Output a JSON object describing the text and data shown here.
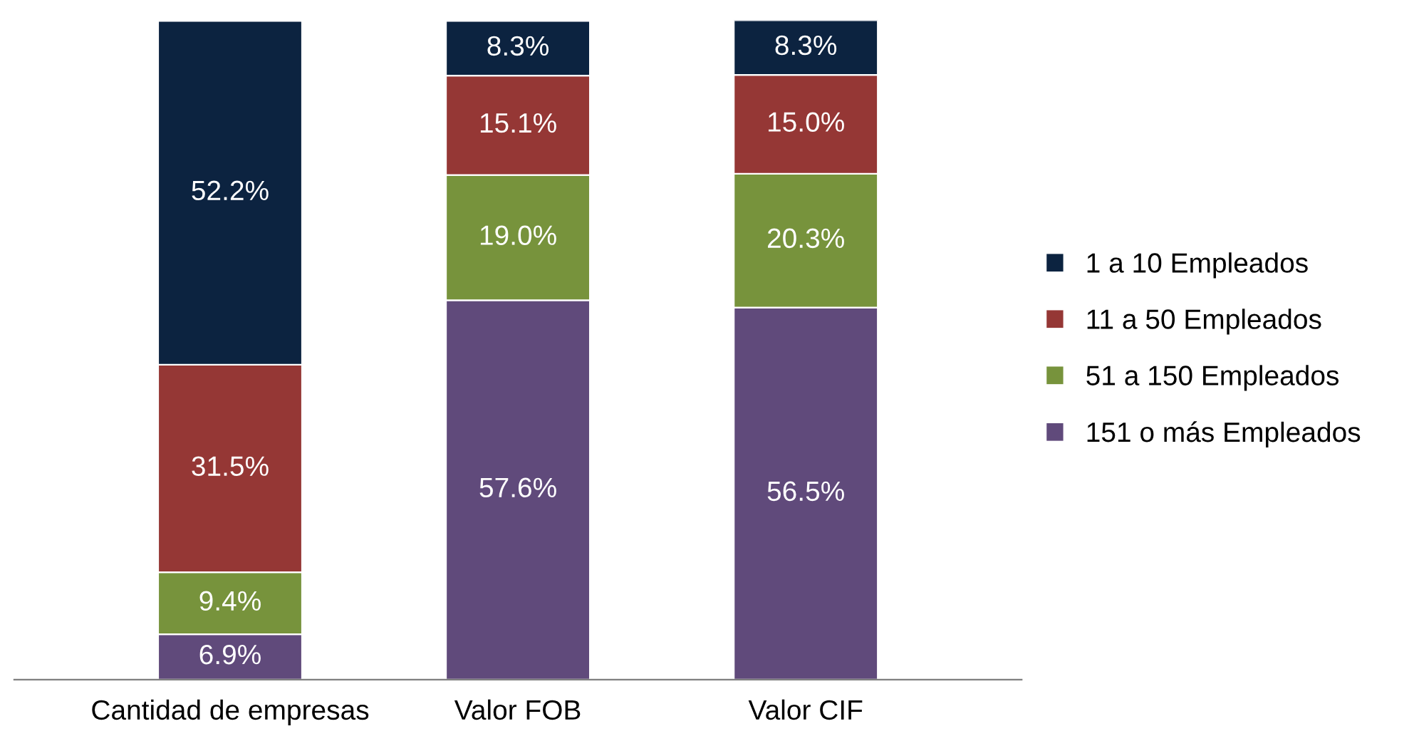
{
  "chart_data": {
    "type": "bar",
    "stacked": true,
    "legend": "right",
    "categories": [
      "Cantidad de empresas",
      "Valor FOB",
      "Valor CIF"
    ],
    "series": [
      {
        "name": "151 o más Empleados",
        "color": "#604a7b",
        "values": [
          6.9,
          57.6,
          56.5
        ],
        "value_labels": [
          "6.9%",
          "57.6%",
          "56.5%"
        ]
      },
      {
        "name": "51 a 150 Empleados",
        "color": "#77933c",
        "values": [
          9.4,
          19.0,
          20.3
        ],
        "value_labels": [
          "9.4%",
          "19.0%",
          "20.3%"
        ]
      },
      {
        "name": "11 a 50 Empleados",
        "color": "#953735",
        "values": [
          31.5,
          15.1,
          15.0
        ],
        "value_labels": [
          "31.5%",
          "15.1%",
          "15.0%"
        ]
      },
      {
        "name": "1 a 10 Empleados",
        "color": "#0c2340",
        "values": [
          52.2,
          8.3,
          8.3
        ],
        "value_labels": [
          "52.2%",
          "8.3%",
          "8.3%"
        ]
      }
    ]
  }
}
